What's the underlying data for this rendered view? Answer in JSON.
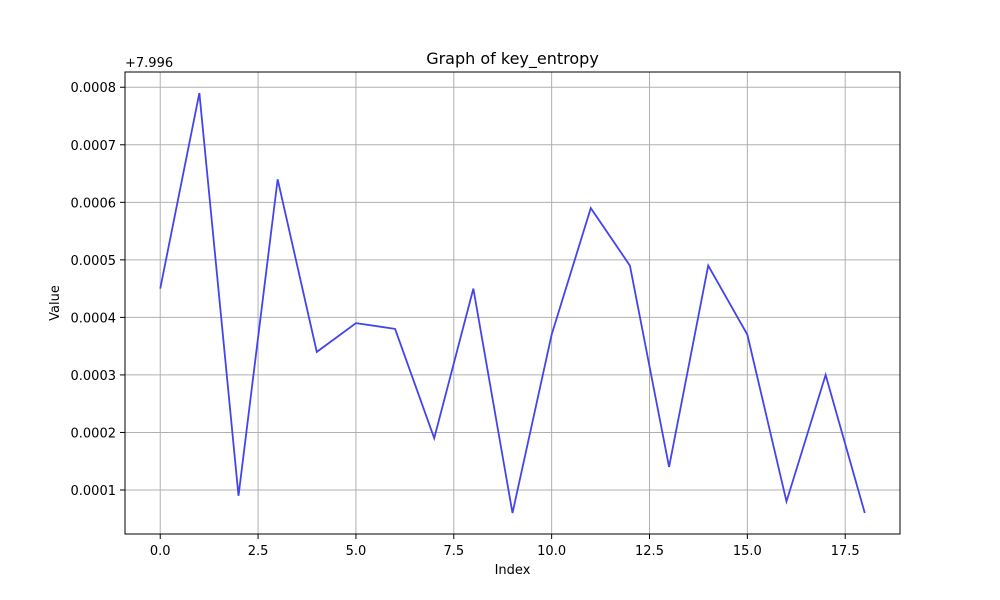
{
  "chart_data": {
    "type": "line",
    "title": "Graph of key_entropy",
    "xlabel": "Index",
    "ylabel": "Value",
    "offset_label": "+7.996",
    "x": [
      0,
      1,
      2,
      3,
      4,
      5,
      6,
      7,
      8,
      9,
      10,
      11,
      12,
      13,
      14,
      15,
      16,
      17,
      18
    ],
    "series": [
      {
        "values": [
          0.00045,
          0.00079,
          9e-05,
          0.00064,
          0.00034,
          0.00039,
          0.00038,
          0.00019,
          0.00045,
          6e-05,
          0.00037,
          0.00059,
          0.00049,
          0.00014,
          0.00049,
          0.00037,
          8e-05,
          0.0003,
          6e-05
        ],
        "color": "#4444ee"
      }
    ],
    "xlim": [
      -0.9,
      18.9
    ],
    "ylim": [
      2.35e-05,
      0.0008265
    ],
    "xticks": [
      0.0,
      2.5,
      5.0,
      7.5,
      10.0,
      12.5,
      15.0,
      17.5
    ],
    "xtick_labels": [
      "0.0",
      "2.5",
      "5.0",
      "7.5",
      "10.0",
      "12.5",
      "15.0",
      "17.5"
    ],
    "yticks": [
      0.0001,
      0.0002,
      0.0003,
      0.0004,
      0.0005,
      0.0006,
      0.0007,
      0.0008
    ],
    "ytick_labels": [
      "0.0001",
      "0.0002",
      "0.0003",
      "0.0004",
      "0.0005",
      "0.0006",
      "0.0007",
      "0.0008"
    ],
    "grid": true
  }
}
